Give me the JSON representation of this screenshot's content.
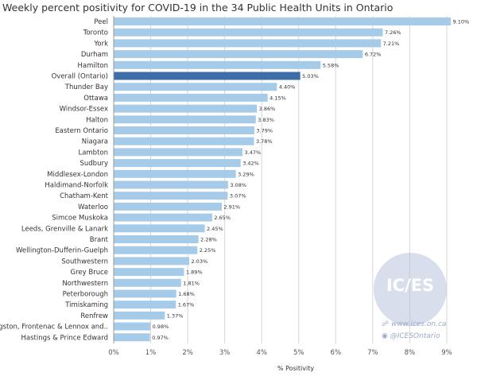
{
  "chart_data": {
    "type": "bar",
    "orientation": "horizontal",
    "title": "Weekly percent positivity for COVID-19 in the 34 Public Health Units in Ontario",
    "xlabel": "% Positivity",
    "xlim": [
      0,
      9.5
    ],
    "xticks": [
      "0%",
      "1%",
      "2%",
      "3%",
      "4%",
      "5%",
      "6%",
      "7%",
      "8%",
      "9%"
    ],
    "grid": "vertical",
    "categories": [
      "Peel",
      "Toronto",
      "York",
      "Durham",
      "Hamilton",
      "Overall (Ontario)",
      "Thunder Bay",
      "Ottawa",
      "Windsor-Essex",
      "Halton",
      "Eastern Ontario",
      "Niagara",
      "Lambton",
      "Sudbury",
      "Middlesex-London",
      "Haldimand-Norfolk",
      "Chatham-Kent",
      "Waterloo",
      "Simcoe Muskoka",
      "Leeds, Grenville & Lanark",
      "Brant",
      "Wellington-Dufferin-Guelph",
      "Southwestern",
      "Grey Bruce",
      "Northwestern",
      "Peterborough",
      "Timiskaming",
      "Renfrew",
      "Kingston, Frontenac & Lennox and..",
      "Hastings & Prince Edward"
    ],
    "values": [
      9.1,
      7.26,
      7.21,
      6.72,
      5.58,
      5.03,
      4.4,
      4.15,
      3.86,
      3.83,
      3.79,
      3.78,
      3.47,
      3.42,
      3.29,
      3.08,
      3.07,
      2.91,
      2.65,
      2.45,
      2.28,
      2.25,
      2.03,
      1.89,
      1.81,
      1.68,
      1.67,
      1.37,
      0.98,
      0.97
    ],
    "value_labels": [
      "9.10%",
      "7.26%",
      "7.21%",
      "6.72%",
      "5.58%",
      "5.03%",
      "4.40%",
      "4.15%",
      "3.86%",
      "3.83%",
      "3.79%",
      "3.78%",
      "3.47%",
      "3.42%",
      "3.29%",
      "3.08%",
      "3.07%",
      "2.91%",
      "2.65%",
      "2.45%",
      "2.28%",
      "2.25%",
      "2.03%",
      "1.89%",
      "1.81%",
      "1.68%",
      "1.67%",
      "1.37%",
      "0.98%",
      "0.97%"
    ],
    "highlight_category": "Overall (Ontario)",
    "colors": {
      "bar": "#a6cbe8",
      "highlight": "#3d6ea7",
      "grid": "#d6d6d6"
    }
  },
  "watermark": {
    "logo": "IC/ES",
    "url": "www.ices.on.ca",
    "handle": "@ICESOntario"
  }
}
